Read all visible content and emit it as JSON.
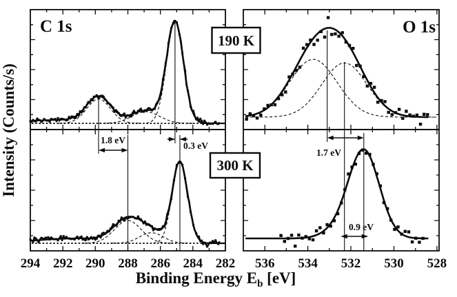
{
  "figure": {
    "ylabel": "Intensity (Counts/s)",
    "xlabel": {
      "main": "Binding Energy E",
      "sub": "b",
      "unit": " [eV]"
    },
    "ink_color": "#0b0b0b",
    "background_color": "#ffffff"
  },
  "labels": {
    "c1s_title": "C 1s",
    "o1s_title": "O 1s",
    "temp_190": "190 K",
    "temp_300": "300 K"
  },
  "annotations": [
    {
      "label": "1.8 eV",
      "axis": "C 1s",
      "from_ev": 289.8,
      "to_ev": 288.0,
      "style": "between-lines"
    },
    {
      "label": "0.3 eV",
      "axis": "C 1s",
      "from_ev": 285.1,
      "to_ev": 284.8,
      "style": "outside-tails"
    },
    {
      "label": "1.7 eV",
      "axis": "O 1s",
      "from_ev": 533.1,
      "to_ev": 531.4,
      "style": "between-lines"
    },
    {
      "label": "0.9 eV",
      "axis": "O 1s",
      "from_ev": 532.3,
      "to_ev": 531.4,
      "style": "overshoot"
    }
  ],
  "chart_data": [
    {
      "id": "C1s_190K",
      "type": "line",
      "region": "C 1s",
      "temperature": "190 K",
      "x_range_ev": [
        294,
        282
      ],
      "x_major_ticks": [
        294,
        292,
        290,
        288,
        286,
        284,
        282
      ],
      "x_minor_ticks": [
        293,
        291,
        289,
        287,
        285,
        283
      ],
      "y_axis": {
        "label": "Intensity (Counts/s)",
        "numeric_labels": false
      },
      "baseline": "flat dashed",
      "peaks": [
        {
          "name": "main-peak",
          "center_ev": 285.1,
          "rel_height": 1.0,
          "fwhm_ev": 1.22,
          "dashed_component": true
        },
        {
          "name": "middle-component",
          "center_ev": 286.9,
          "rel_height": 0.115,
          "fwhm_ev": 2.0,
          "dashed_component": true
        },
        {
          "name": "satellite-peak",
          "center_ev": 289.8,
          "rel_height": 0.24,
          "fwhm_ev": 1.72,
          "dashed_component": true
        },
        {
          "name": "broad-background",
          "center_ev": 291.5,
          "rel_height": 0.035,
          "fwhm_ev": 7.0,
          "dashed_component": false
        }
      ],
      "marker_lines_ev": [
        289.8,
        285.1
      ]
    },
    {
      "id": "C1s_300K",
      "type": "line",
      "region": "C 1s",
      "temperature": "300 K",
      "x_range_ev": [
        294,
        282
      ],
      "x_major_ticks": [
        294,
        292,
        290,
        288,
        286,
        284,
        282
      ],
      "x_minor_ticks": [
        293,
        291,
        289,
        287,
        285,
        283
      ],
      "y_axis": {
        "label": "Intensity (Counts/s)",
        "numeric_labels": false
      },
      "baseline": "flat dashed",
      "peaks": [
        {
          "name": "main-peak",
          "center_ev": 284.8,
          "rel_height": 1.0,
          "fwhm_ev": 1.13,
          "dashed_component": true
        },
        {
          "name": "middle-component",
          "center_ev": 286.55,
          "rel_height": 0.13,
          "fwhm_ev": 1.7,
          "dashed_component": true
        },
        {
          "name": "satellite-peak",
          "center_ev": 288.0,
          "rel_height": 0.28,
          "fwhm_ev": 1.93,
          "dashed_component": true
        },
        {
          "name": "broad-background",
          "center_ev": 291.0,
          "rel_height": 0.06,
          "fwhm_ev": 6.0,
          "dashed_component": false
        }
      ],
      "marker_lines_ev": [
        288.0,
        284.8
      ]
    },
    {
      "id": "O1s_190K",
      "type": "scatter+fit",
      "region": "O 1s",
      "temperature": "190 K",
      "x_range_ev": [
        537,
        527.9
      ],
      "x_major_ticks": [
        536,
        534,
        532,
        530,
        528
      ],
      "x_minor_ticks": [
        535,
        533,
        531,
        529
      ],
      "y_axis": {
        "label": "Intensity (Counts/s)",
        "numeric_labels": false
      },
      "baseline": "component tails",
      "peaks": [
        {
          "name": "component-A",
          "center_ev": 533.75,
          "rel_height": 0.65,
          "fwhm_ev": 2.6,
          "dashed_component": true
        },
        {
          "name": "component-B",
          "center_ev": 532.3,
          "rel_height": 0.61,
          "fwhm_ev": 2.47,
          "dashed_component": true
        }
      ],
      "marker_lines_ev": [
        533.1,
        532.3
      ]
    },
    {
      "id": "O1s_300K",
      "type": "scatter+fit",
      "region": "O 1s",
      "temperature": "300 K",
      "x_range_ev": [
        537,
        527.9
      ],
      "x_major_ticks": [
        536,
        534,
        532,
        530,
        528
      ],
      "x_minor_ticks": [
        535,
        533,
        531,
        529
      ],
      "y_axis": {
        "label": "Intensity (Counts/s)",
        "numeric_labels": false
      },
      "baseline": "flat noisy",
      "peaks": [
        {
          "name": "main-peak",
          "center_ev": 531.4,
          "rel_height": 1.0,
          "fwhm_ev": 1.7,
          "dashed_component": false
        },
        {
          "name": "left-shoulder",
          "center_ev": 532.7,
          "rel_height": 0.07,
          "fwhm_ev": 1.6,
          "dashed_component": false
        }
      ],
      "marker_lines_ev": [
        531.4
      ]
    }
  ]
}
